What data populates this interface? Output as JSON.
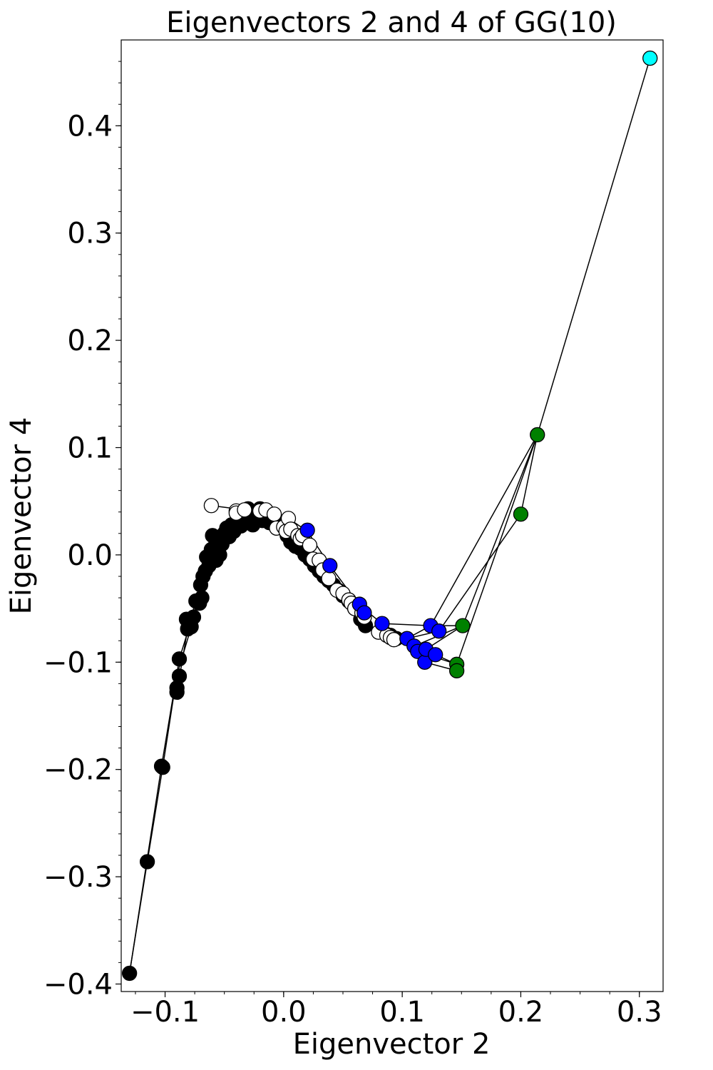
{
  "chart_data": {
    "type": "scatter",
    "title": "Eigenvectors 2 and 4 of GG(10)",
    "xlabel": "Eigenvector 2",
    "ylabel": "Eigenvector 4",
    "xlim": [
      -0.137,
      0.32
    ],
    "ylim": [
      -0.407,
      0.48
    ],
    "xticks": [
      -0.1,
      0.0,
      0.1,
      0.2,
      0.3
    ],
    "xtick_labels": [
      "−0.1",
      "0.0",
      "0.1",
      "0.2",
      "0.3"
    ],
    "yticks": [
      -0.4,
      -0.3,
      -0.2,
      -0.1,
      0.0,
      0.1,
      0.2,
      0.3,
      0.4
    ],
    "ytick_labels": [
      "−0.4",
      "−0.3",
      "−0.2",
      "−0.1",
      "0.0",
      "0.1",
      "0.2",
      "0.3",
      "0.4"
    ],
    "grid": false,
    "colors": {
      "black": "#000000",
      "white": "#ffffff",
      "blue": "#0000ff",
      "green": "#008000",
      "cyan": "#00ffff"
    },
    "edges": [
      [
        [
          -0.13,
          -0.39
        ],
        [
          -0.115,
          -0.286
        ]
      ],
      [
        [
          -0.115,
          -0.286
        ],
        [
          -0.102,
          -0.198
        ]
      ],
      [
        [
          -0.13,
          -0.39
        ],
        [
          -0.103,
          -0.197
        ]
      ],
      [
        [
          -0.102,
          -0.198
        ],
        [
          -0.09,
          -0.112
        ]
      ],
      [
        [
          -0.103,
          -0.197
        ],
        [
          -0.088,
          -0.097
        ]
      ],
      [
        [
          -0.09,
          -0.128
        ],
        [
          -0.081,
          -0.069
        ]
      ],
      [
        [
          -0.09,
          -0.112
        ],
        [
          -0.076,
          -0.06
        ]
      ],
      [
        [
          -0.088,
          -0.097
        ],
        [
          -0.072,
          -0.04
        ]
      ],
      [
        [
          -0.081,
          -0.069
        ],
        [
          -0.068,
          -0.02
        ]
      ],
      [
        [
          -0.076,
          -0.06
        ],
        [
          -0.063,
          0.0
        ]
      ],
      [
        [
          -0.072,
          -0.04
        ],
        [
          -0.058,
          0.012
        ]
      ],
      [
        [
          -0.061,
          0.046
        ],
        [
          -0.04,
          0.043
        ]
      ],
      [
        [
          -0.04,
          0.043
        ],
        [
          -0.022,
          0.042
        ]
      ],
      [
        [
          -0.03,
          0.043
        ],
        [
          0.004,
          0.034
        ]
      ],
      [
        [
          0.004,
          0.034
        ],
        [
          0.02,
          0.022
        ]
      ],
      [
        [
          0.02,
          0.022
        ],
        [
          0.039,
          -0.01
        ]
      ],
      [
        [
          0.039,
          -0.01
        ],
        [
          0.064,
          -0.047
        ]
      ],
      [
        [
          0.064,
          -0.047
        ],
        [
          0.083,
          -0.064
        ]
      ],
      [
        [
          0.083,
          -0.064
        ],
        [
          0.104,
          -0.078
        ]
      ],
      [
        [
          0.083,
          -0.064
        ],
        [
          0.124,
          -0.066
        ]
      ],
      [
        [
          0.104,
          -0.078
        ],
        [
          0.124,
          -0.066
        ]
      ],
      [
        [
          0.104,
          -0.078
        ],
        [
          0.131,
          -0.071
        ]
      ],
      [
        [
          0.11,
          -0.085
        ],
        [
          0.151,
          -0.066
        ]
      ],
      [
        [
          0.113,
          -0.09
        ],
        [
          0.146,
          -0.102
        ]
      ],
      [
        [
          0.119,
          -0.1
        ],
        [
          0.146,
          -0.108
        ]
      ],
      [
        [
          0.124,
          -0.066
        ],
        [
          0.151,
          -0.066
        ]
      ],
      [
        [
          0.131,
          -0.071
        ],
        [
          0.2,
          0.038
        ]
      ],
      [
        [
          0.124,
          -0.066
        ],
        [
          0.214,
          0.112
        ]
      ],
      [
        [
          0.146,
          -0.102
        ],
        [
          0.214,
          0.112
        ]
      ],
      [
        [
          0.151,
          -0.066
        ],
        [
          0.214,
          0.112
        ]
      ],
      [
        [
          0.2,
          0.038
        ],
        [
          0.214,
          0.112
        ]
      ],
      [
        [
          0.214,
          0.112
        ],
        [
          0.309,
          0.463
        ]
      ],
      [
        [
          0.128,
          -0.093
        ],
        [
          0.146,
          -0.102
        ]
      ],
      [
        [
          0.12,
          -0.088
        ],
        [
          0.151,
          -0.066
        ]
      ]
    ],
    "series": [
      {
        "color": "black",
        "points": [
          [
            -0.13,
            -0.39
          ],
          [
            -0.115,
            -0.286
          ],
          [
            -0.102,
            -0.198
          ],
          [
            -0.103,
            -0.197
          ],
          [
            -0.09,
            -0.128
          ],
          [
            -0.09,
            -0.124
          ],
          [
            -0.088,
            -0.113
          ],
          [
            -0.088,
            -0.097
          ],
          [
            -0.082,
            -0.06
          ],
          [
            -0.081,
            -0.069
          ],
          [
            -0.078,
            -0.067
          ],
          [
            -0.076,
            -0.058
          ],
          [
            -0.074,
            -0.043
          ],
          [
            -0.071,
            -0.045
          ],
          [
            -0.07,
            -0.028
          ],
          [
            -0.069,
            -0.04
          ],
          [
            -0.068,
            -0.02
          ],
          [
            -0.066,
            -0.015
          ],
          [
            -0.065,
            -0.002
          ],
          [
            -0.063,
            -0.01
          ],
          [
            -0.061,
            0.005
          ],
          [
            -0.06,
            0.018
          ],
          [
            -0.058,
            0.008
          ],
          [
            -0.057,
            -0.005
          ],
          [
            -0.055,
            0.015
          ],
          [
            -0.054,
            0.0
          ],
          [
            -0.052,
            0.01
          ],
          [
            -0.05,
            0.02
          ],
          [
            -0.048,
            0.025
          ],
          [
            -0.046,
            0.017
          ],
          [
            -0.044,
            0.028
          ],
          [
            -0.042,
            0.022
          ],
          [
            -0.04,
            0.03
          ],
          [
            -0.038,
            0.033
          ],
          [
            -0.036,
            0.027
          ],
          [
            -0.034,
            0.038
          ],
          [
            -0.032,
            0.03
          ],
          [
            -0.03,
            0.043
          ],
          [
            -0.028,
            0.035
          ],
          [
            -0.026,
            0.028
          ],
          [
            -0.023,
            0.04
          ],
          [
            -0.02,
            0.043
          ],
          [
            -0.018,
            0.032
          ],
          [
            -0.015,
            0.038
          ],
          [
            -0.012,
            0.03
          ],
          [
            -0.008,
            0.035
          ],
          [
            -0.005,
            0.028
          ],
          [
            0.0,
            0.025
          ],
          [
            0.003,
            0.018
          ],
          [
            0.006,
            0.012
          ],
          [
            0.01,
            0.008
          ],
          [
            0.014,
            0.006
          ],
          [
            0.018,
            0.0
          ],
          [
            0.022,
            -0.004
          ],
          [
            0.026,
            -0.01
          ],
          [
            0.03,
            -0.015
          ],
          [
            0.034,
            -0.02
          ],
          [
            0.038,
            -0.024
          ],
          [
            0.042,
            -0.028
          ],
          [
            0.046,
            -0.033
          ],
          [
            0.05,
            -0.038
          ],
          [
            0.055,
            -0.043
          ],
          [
            0.06,
            -0.05
          ],
          [
            0.065,
            -0.06
          ],
          [
            0.069,
            -0.066
          ],
          [
            0.09,
            -0.075
          ],
          [
            0.095,
            -0.078
          ]
        ]
      },
      {
        "color": "white",
        "points": [
          [
            -0.061,
            0.046
          ],
          [
            -0.04,
            0.041
          ],
          [
            -0.04,
            0.039
          ],
          [
            -0.033,
            0.042
          ],
          [
            -0.02,
            0.041
          ],
          [
            -0.015,
            0.042
          ],
          [
            -0.008,
            0.038
          ],
          [
            -0.006,
            0.025
          ],
          [
            0.0,
            0.026
          ],
          [
            0.002,
            0.022
          ],
          [
            0.004,
            0.034
          ],
          [
            0.006,
            0.024
          ],
          [
            0.012,
            0.018
          ],
          [
            0.014,
            0.015
          ],
          [
            0.016,
            0.018
          ],
          [
            0.022,
            0.009
          ],
          [
            0.025,
            -0.004
          ],
          [
            0.03,
            -0.005
          ],
          [
            0.033,
            -0.014
          ],
          [
            0.038,
            -0.022
          ],
          [
            0.045,
            -0.033
          ],
          [
            0.05,
            -0.036
          ],
          [
            0.055,
            -0.042
          ],
          [
            0.057,
            -0.045
          ],
          [
            0.06,
            -0.05
          ],
          [
            0.066,
            -0.054
          ],
          [
            0.068,
            -0.058
          ],
          [
            0.08,
            -0.072
          ],
          [
            0.087,
            -0.075
          ],
          [
            0.09,
            -0.077
          ],
          [
            0.093,
            -0.079
          ]
        ]
      },
      {
        "color": "blue",
        "points": [
          [
            0.02,
            0.023
          ],
          [
            0.039,
            -0.01
          ],
          [
            0.064,
            -0.046
          ],
          [
            0.068,
            -0.054
          ],
          [
            0.083,
            -0.064
          ],
          [
            0.104,
            -0.078
          ],
          [
            0.11,
            -0.085
          ],
          [
            0.113,
            -0.09
          ],
          [
            0.119,
            -0.1
          ],
          [
            0.12,
            -0.088
          ],
          [
            0.124,
            -0.066
          ],
          [
            0.128,
            -0.093
          ],
          [
            0.131,
            -0.071
          ]
        ]
      },
      {
        "color": "green",
        "points": [
          [
            0.146,
            -0.102
          ],
          [
            0.146,
            -0.108
          ],
          [
            0.151,
            -0.066
          ],
          [
            0.2,
            0.038
          ],
          [
            0.214,
            0.112
          ]
        ]
      },
      {
        "color": "cyan",
        "points": [
          [
            0.309,
            0.463
          ]
        ]
      }
    ]
  }
}
